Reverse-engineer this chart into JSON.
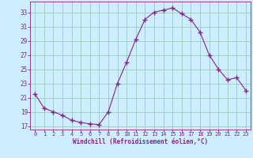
{
  "x": [
    0,
    1,
    2,
    3,
    4,
    5,
    6,
    7,
    8,
    9,
    10,
    11,
    12,
    13,
    14,
    15,
    16,
    17,
    18,
    19,
    20,
    21,
    22,
    23
  ],
  "y": [
    21.5,
    19.5,
    19.0,
    18.5,
    17.8,
    17.5,
    17.3,
    17.2,
    19.0,
    23.0,
    26.0,
    29.2,
    32.0,
    33.0,
    33.3,
    33.6,
    32.8,
    32.0,
    30.2,
    27.0,
    25.0,
    23.5,
    23.8,
    22.0
  ],
  "line_color": "#882288",
  "marker": "+",
  "marker_size": 4,
  "marker_lw": 1.0,
  "bg_color": "#cceeff",
  "grid_color": "#99ccbb",
  "xlabel": "Windchill (Refroidissement éolien,°C)",
  "xlim": [
    -0.5,
    23.5
  ],
  "ylim": [
    16.5,
    34.5
  ],
  "yticks": [
    17,
    19,
    21,
    23,
    25,
    27,
    29,
    31,
    33
  ],
  "xticks": [
    0,
    1,
    2,
    3,
    4,
    5,
    6,
    7,
    8,
    9,
    10,
    11,
    12,
    13,
    14,
    15,
    16,
    17,
    18,
    19,
    20,
    21,
    22,
    23
  ],
  "text_color": "#882288",
  "ytick_fontsize": 5.5,
  "xtick_fontsize": 5.0,
  "xlabel_fontsize": 5.5
}
